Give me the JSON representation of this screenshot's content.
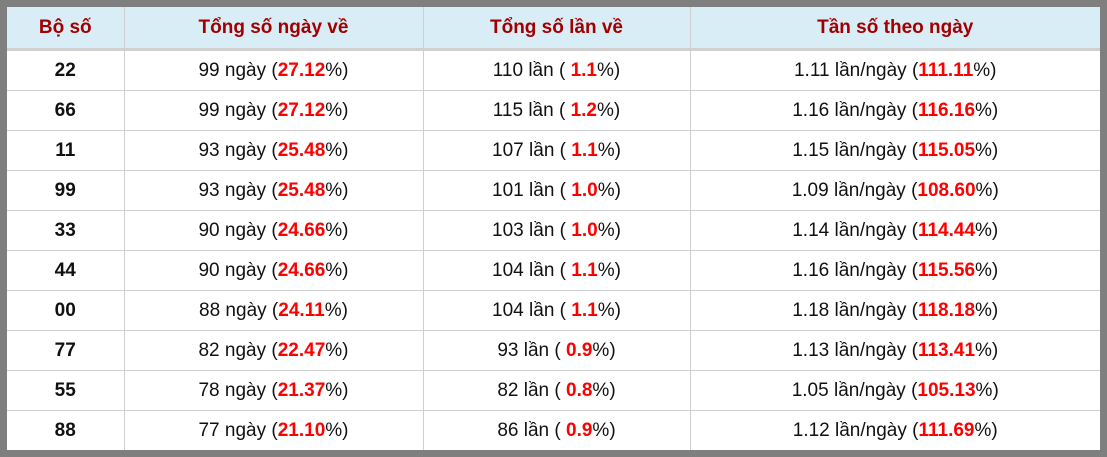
{
  "headers": [
    "Bộ số",
    "Tổng số ngày về",
    "Tổng số lần về",
    "Tần số theo ngày"
  ],
  "rows": [
    {
      "num": "22",
      "days": "99",
      "days_pct": "27.12",
      "times": "110",
      "times_pct": "1.1",
      "freq": "1.11",
      "freq_pct": "111.11"
    },
    {
      "num": "66",
      "days": "99",
      "days_pct": "27.12",
      "times": "115",
      "times_pct": "1.2",
      "freq": "1.16",
      "freq_pct": "116.16"
    },
    {
      "num": "11",
      "days": "93",
      "days_pct": "25.48",
      "times": "107",
      "times_pct": "1.1",
      "freq": "1.15",
      "freq_pct": "115.05"
    },
    {
      "num": "99",
      "days": "93",
      "days_pct": "25.48",
      "times": "101",
      "times_pct": "1.0",
      "freq": "1.09",
      "freq_pct": "108.60"
    },
    {
      "num": "33",
      "days": "90",
      "days_pct": "24.66",
      "times": "103",
      "times_pct": "1.0",
      "freq": "1.14",
      "freq_pct": "114.44"
    },
    {
      "num": "44",
      "days": "90",
      "days_pct": "24.66",
      "times": "104",
      "times_pct": "1.1",
      "freq": "1.16",
      "freq_pct": "115.56"
    },
    {
      "num": "00",
      "days": "88",
      "days_pct": "24.11",
      "times": "104",
      "times_pct": "1.1",
      "freq": "1.18",
      "freq_pct": "118.18"
    },
    {
      "num": "77",
      "days": "82",
      "days_pct": "22.47",
      "times": "93",
      "times_pct": "0.9",
      "freq": "1.13",
      "freq_pct": "113.41"
    },
    {
      "num": "55",
      "days": "78",
      "days_pct": "21.37",
      "times": "82",
      "times_pct": "0.8",
      "freq": "1.05",
      "freq_pct": "105.13"
    },
    {
      "num": "88",
      "days": "77",
      "days_pct": "21.10",
      "times": "86",
      "times_pct": "0.9",
      "freq": "1.12",
      "freq_pct": "111.69"
    }
  ],
  "units": {
    "days": " ngày (",
    "times": " lần ( ",
    "freq": " lần/ngày (",
    "close": "%)"
  },
  "colors": {
    "header_bg": "#d9edf7",
    "header_text": "#a10000",
    "highlight": "#ff0000",
    "frame": "#7f7f7f"
  }
}
